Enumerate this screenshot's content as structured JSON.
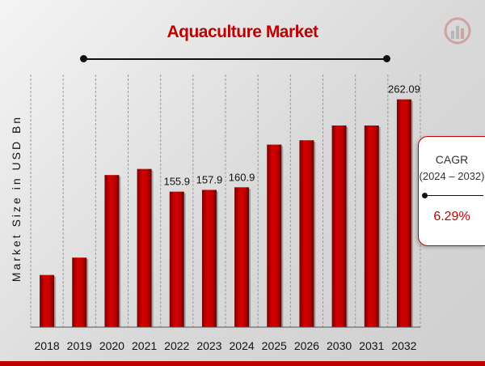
{
  "title": "Aquaculture Market",
  "colors": {
    "bar": "#c00000",
    "accent": "#c00000"
  },
  "cagr": {
    "label": "CAGR",
    "period": "(2024 – 2032)",
    "value": "6.29%"
  },
  "logo_icon": "chart-logo-icon",
  "chart_data": {
    "type": "bar",
    "title": "Aquaculture Market",
    "xlabel": "",
    "ylabel": "Market Size in USD Bn",
    "categories": [
      "2018",
      "2019",
      "2020",
      "2021",
      "2022",
      "2023",
      "2024",
      "2025",
      "2026",
      "2030",
      "2031",
      "2032"
    ],
    "values": [
      60,
      80,
      175,
      182,
      155.9,
      157.9,
      160.9,
      210,
      215,
      232,
      232,
      262.09
    ],
    "data_labels": [
      "",
      "",
      "",
      "",
      "155.9",
      "157.9",
      "160.9",
      "",
      "",
      "",
      "",
      "262.09"
    ],
    "ylim": [
      0,
      300
    ],
    "grid": "vertical dashed",
    "legend": "none"
  }
}
